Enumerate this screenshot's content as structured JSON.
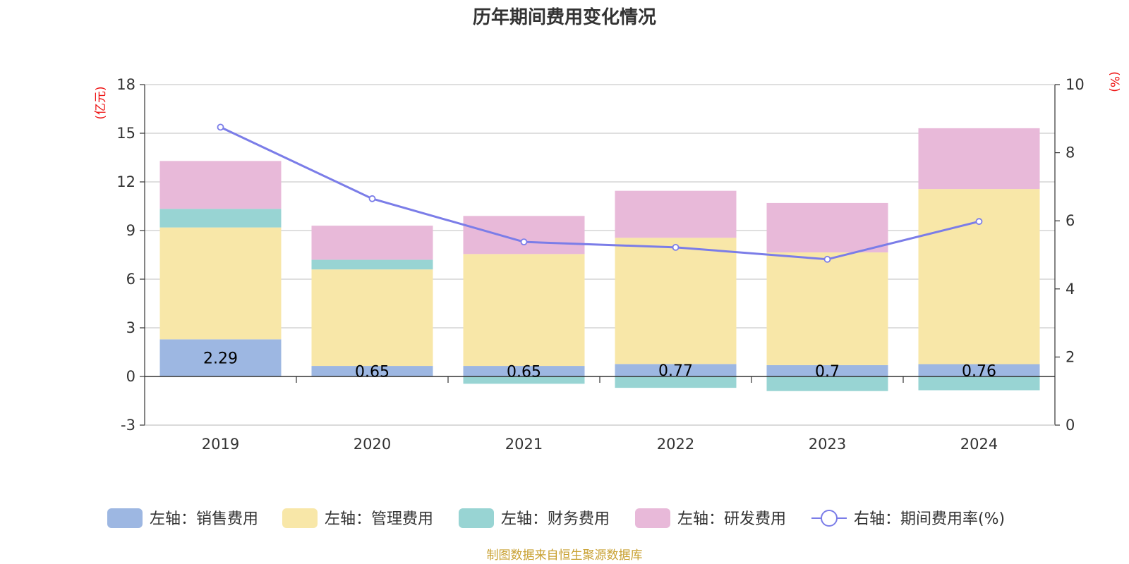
{
  "chart_data": {
    "type": "bar",
    "title": "历年期间费用变化情况",
    "categories": [
      "2019",
      "2020",
      "2021",
      "2022",
      "2023",
      "2024"
    ],
    "left_axis": {
      "unit": "(亿元)",
      "ylim": [
        -3,
        18
      ],
      "ticks": [
        "-3",
        "0",
        "3",
        "6",
        "9",
        "12",
        "15",
        "18"
      ]
    },
    "right_axis": {
      "unit": "(%)",
      "ylim": [
        0,
        10
      ],
      "ticks": [
        "0",
        "2",
        "4",
        "6",
        "8",
        "10"
      ]
    },
    "stacked": true,
    "series": [
      {
        "name": "左轴：销售费用",
        "color": "#9db7e2",
        "values": [
          2.29,
          0.65,
          0.65,
          0.77,
          0.7,
          0.76
        ],
        "labels": [
          "2.29",
          "0.65",
          "0.65",
          "0.77",
          "0.7",
          "0.76"
        ]
      },
      {
        "name": "左轴：管理费用",
        "color": "#f8e7a8",
        "values": [
          6.9,
          5.95,
          6.9,
          7.78,
          6.95,
          10.8
        ]
      },
      {
        "name": "左轴：财务费用",
        "color": "#98d4d3",
        "values": [
          1.15,
          0.6,
          -0.45,
          -0.7,
          -0.9,
          -0.85
        ]
      },
      {
        "name": "左轴：研发费用",
        "color": "#e8b9d9",
        "values": [
          2.95,
          2.1,
          2.35,
          2.9,
          3.05,
          3.75
        ]
      }
    ],
    "line_series": {
      "name": "右轴：期间费用率(%)",
      "color": "#7b7de8",
      "values": [
        8.75,
        6.65,
        5.38,
        5.22,
        4.87,
        5.98
      ]
    },
    "legend_position": "bottom",
    "source": "制图数据来自恒生聚源数据库"
  }
}
